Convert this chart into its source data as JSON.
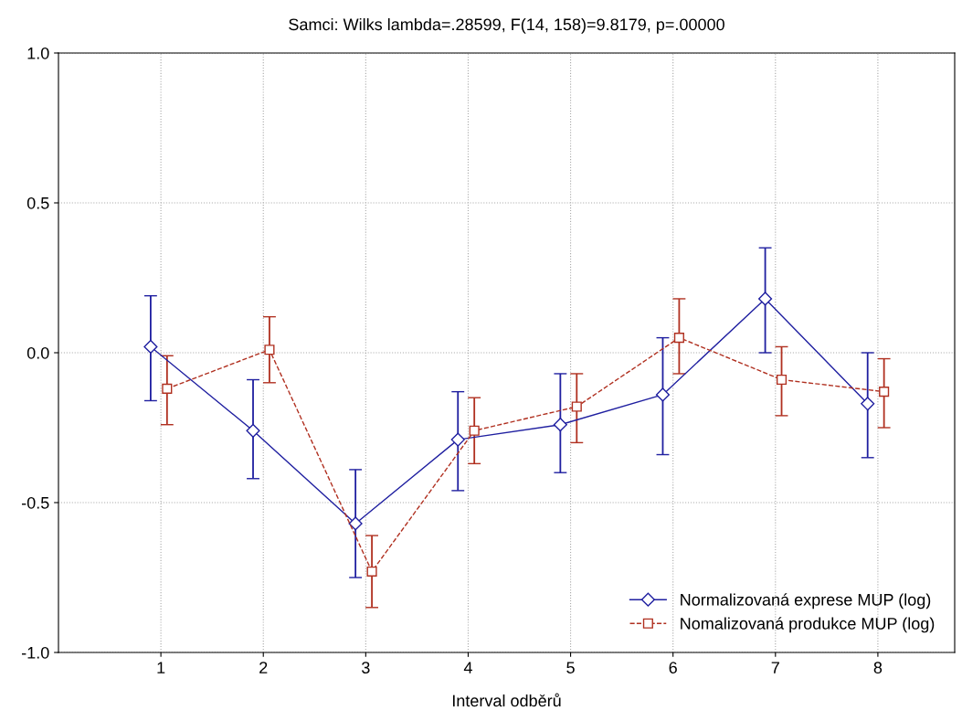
{
  "chart_data": {
    "type": "line",
    "title": "Samci: Wilks lambda=.28599, F(14, 158)=9.8179, p=.00000",
    "xlabel": "Interval odběrů",
    "xlim": [
      0,
      8.75
    ],
    "xticks": [
      1,
      2,
      3,
      4,
      5,
      6,
      7,
      8
    ],
    "ylim": [
      -1.0,
      1.0
    ],
    "yticks": [
      {
        "value": -1.0,
        "label": "-1.0"
      },
      {
        "value": -0.5,
        "label": "-0.5"
      },
      {
        "value": 0.0,
        "label": "0.0"
      },
      {
        "value": 0.5,
        "label": "0.5"
      },
      {
        "value": 1.0,
        "label": "1.0"
      }
    ],
    "grid": true,
    "legend": "bottom right",
    "series": [
      {
        "name": "Normalizovaná exprese MUP (log)",
        "color": "#1f1fa0",
        "marker": "diamond",
        "line_style": "solid",
        "x": [
          0.9,
          1.9,
          2.9,
          3.9,
          4.9,
          5.9,
          6.9,
          7.9
        ],
        "values": [
          0.02,
          -0.26,
          -0.57,
          -0.29,
          -0.24,
          -0.14,
          0.18,
          -0.17
        ],
        "errors": [
          [
            -0.16,
            0.19
          ],
          [
            -0.42,
            -0.09
          ],
          [
            -0.75,
            -0.39
          ],
          [
            -0.46,
            -0.13
          ],
          [
            -0.4,
            -0.07
          ],
          [
            -0.34,
            0.05
          ],
          [
            0.0,
            0.35
          ],
          [
            -0.35,
            0.0
          ]
        ]
      },
      {
        "name": "Nomalizovaná produkce MUP (log)",
        "color": "#b03020",
        "marker": "square",
        "line_style": "dashed",
        "x": [
          1.06,
          2.06,
          3.06,
          4.06,
          5.06,
          6.06,
          7.06,
          8.06
        ],
        "values": [
          -0.12,
          0.01,
          -0.73,
          -0.26,
          -0.18,
          0.05,
          -0.09,
          -0.13
        ],
        "errors": [
          [
            -0.24,
            -0.01
          ],
          [
            -0.1,
            0.12
          ],
          [
            -0.85,
            -0.61
          ],
          [
            -0.37,
            -0.15
          ],
          [
            -0.3,
            -0.07
          ],
          [
            -0.07,
            0.18
          ],
          [
            -0.21,
            0.02
          ],
          [
            -0.25,
            -0.02
          ]
        ]
      }
    ]
  }
}
